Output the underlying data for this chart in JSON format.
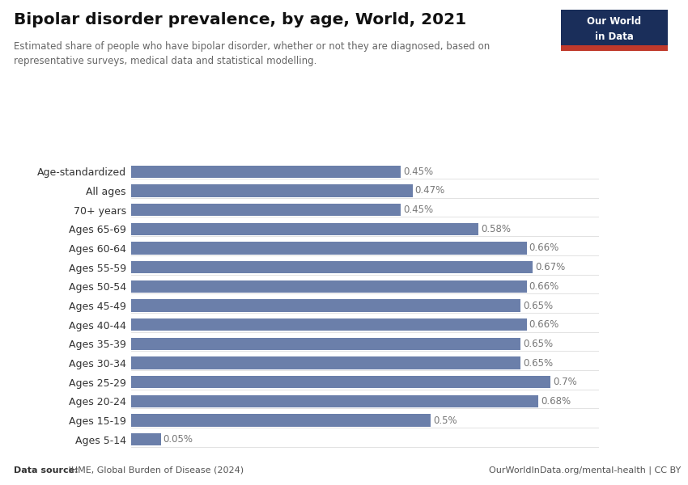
{
  "title": "Bipolar disorder prevalence, by age, World, 2021",
  "subtitle": "Estimated share of people who have bipolar disorder, whether or not they are diagnosed, based on\nrepresentative surveys, medical data and statistical modelling.",
  "categories": [
    "Age-standardized",
    "All ages",
    "70+ years",
    "Ages 65-69",
    "Ages 60-64",
    "Ages 55-59",
    "Ages 50-54",
    "Ages 45-49",
    "Ages 40-44",
    "Ages 35-39",
    "Ages 30-34",
    "Ages 25-29",
    "Ages 20-24",
    "Ages 15-19",
    "Ages 5-14"
  ],
  "values": [
    0.45,
    0.47,
    0.45,
    0.58,
    0.66,
    0.67,
    0.66,
    0.65,
    0.66,
    0.65,
    0.65,
    0.7,
    0.68,
    0.5,
    0.05
  ],
  "labels": [
    "0.45%",
    "0.47%",
    "0.45%",
    "0.58%",
    "0.66%",
    "0.67%",
    "0.66%",
    "0.65%",
    "0.66%",
    "0.65%",
    "0.65%",
    "0.7%",
    "0.68%",
    "0.5%",
    "0.05%"
  ],
  "bar_color": "#6b7faa",
  "bg_color": "#ffffff",
  "text_color": "#333333",
  "label_color": "#777777",
  "data_source_bold": "Data source:",
  "data_source_rest": " IHME, Global Burden of Disease (2024)",
  "footer_right": "OurWorldInData.org/mental-health | CC BY",
  "xlim": [
    0,
    0.78
  ],
  "logo_bg": "#1a2e5a",
  "logo_red": "#c0392b",
  "logo_text_line1": "Our World",
  "logo_text_line2": "in Data"
}
